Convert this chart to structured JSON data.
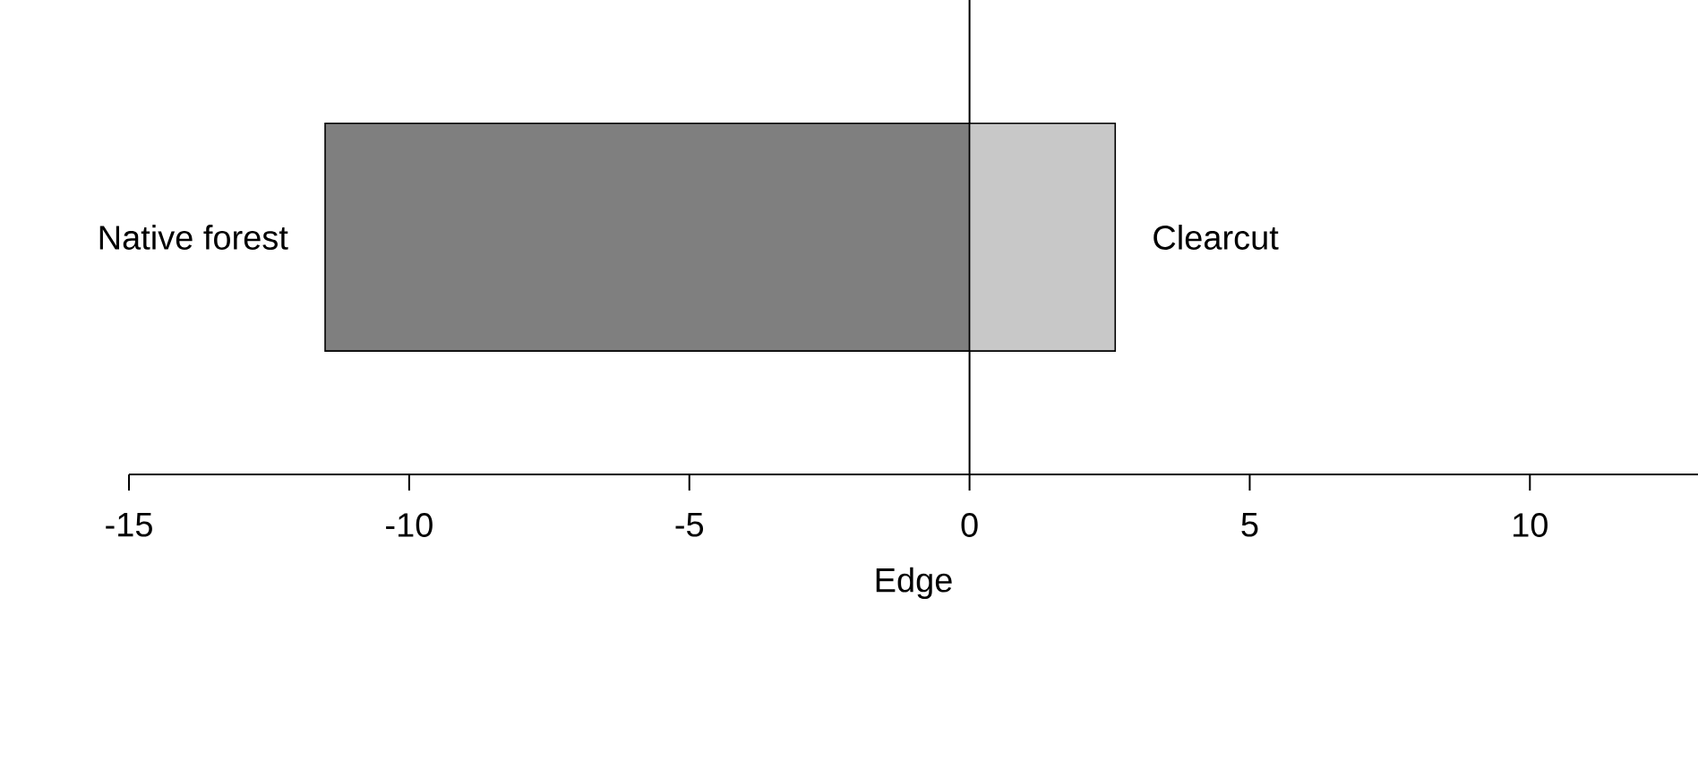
{
  "chart_data": {
    "type": "bar",
    "orientation": "horizontal",
    "xlabel": "Edge",
    "categories": [
      null
    ],
    "series": [
      {
        "name": "Native forest",
        "color": "#7f7f7f",
        "values": [
          -11.5
        ]
      },
      {
        "name": "Clearcut",
        "color": "#c8c8c8",
        "values": [
          2.6
        ]
      }
    ],
    "stacked": true,
    "xlim": [
      -15,
      13
    ],
    "xticks": [
      -15,
      -10,
      -5,
      0,
      5,
      10
    ],
    "legend": false
  }
}
